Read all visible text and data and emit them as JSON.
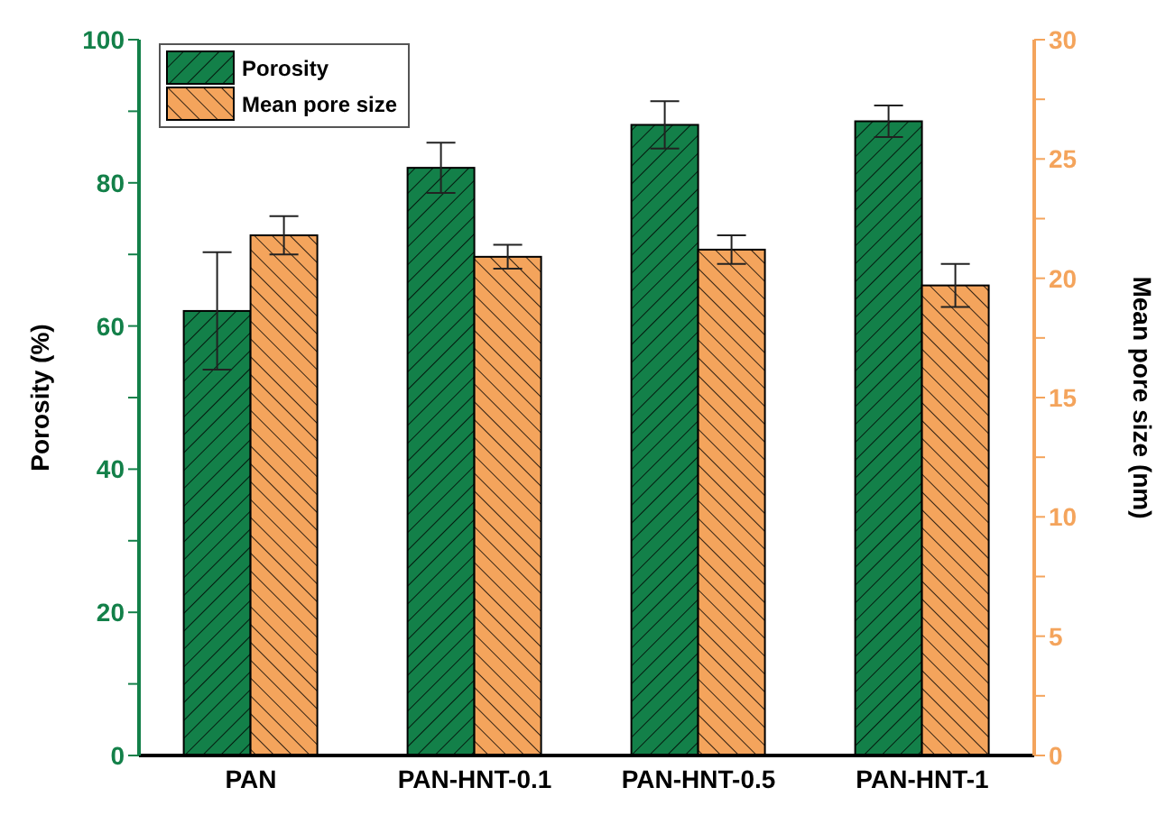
{
  "chart_data": {
    "type": "bar",
    "categories": [
      "PAN",
      "PAN-HNT-0.1",
      "PAN-HNT-0.5",
      "PAN-HNT-1"
    ],
    "series": [
      {
        "name": "Porosity",
        "color": "#138049",
        "values": [
          62.1,
          82.1,
          88.1,
          88.6
        ],
        "errors": [
          8.2,
          3.5,
          3.3,
          2.2
        ]
      },
      {
        "name": "Mean pore size",
        "color": "#f4a45c",
        "axis": "y2",
        "values": [
          21.8,
          20.9,
          21.2,
          19.7
        ],
        "errors": [
          0.8,
          0.5,
          0.6,
          0.9
        ]
      }
    ],
    "ylabel": "Porosity (%)",
    "y2label": "Mean pore size (nm)",
    "ylim": [
      0,
      100
    ],
    "yticks": [
      0,
      {
        "value": 10,
        "label": null
      },
      20,
      {
        "value": 30,
        "label": null
      },
      40,
      {
        "value": 50,
        "label": null
      },
      60,
      {
        "value": 70,
        "label": null
      },
      80,
      {
        "value": 90,
        "label": null
      },
      100
    ],
    "y2lim": [
      0,
      30
    ],
    "y2ticks": [
      0,
      {
        "value": 2.5,
        "label": null
      },
      5,
      {
        "value": 7.5,
        "label": null
      },
      10,
      {
        "value": 12.5,
        "label": null
      },
      15,
      {
        "value": 17.5,
        "label": null
      },
      20,
      {
        "value": 22.5,
        "label": null
      },
      25,
      {
        "value": 27.5,
        "label": null
      },
      30
    ],
    "legend": "top left",
    "grid": false
  }
}
